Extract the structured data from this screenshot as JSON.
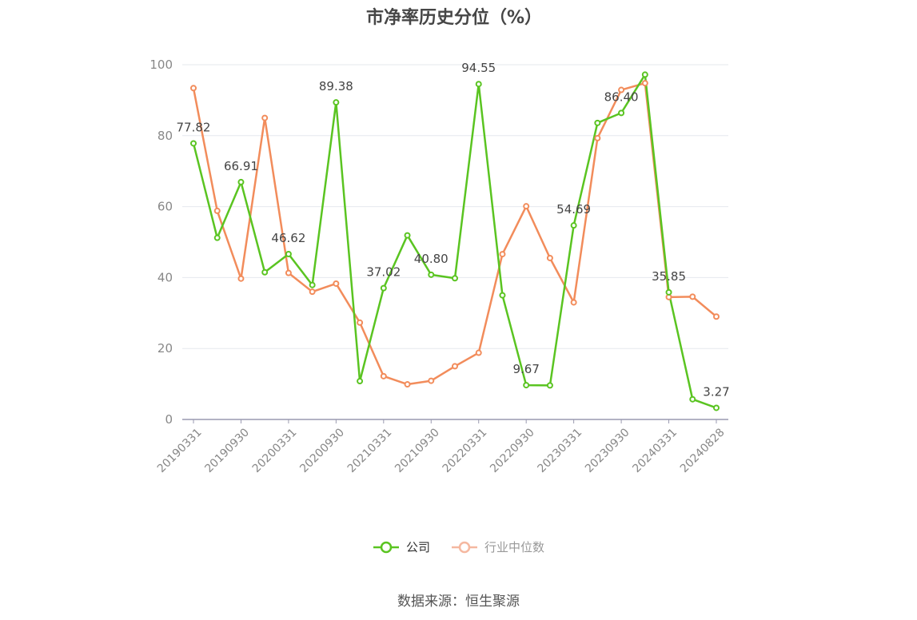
{
  "title": "市净率历史分位（%）",
  "source": "数据来源：恒生聚源",
  "legend": {
    "company": "公司",
    "industry": "行业中位数"
  },
  "colors": {
    "company": "#5ac421",
    "industry": "#f28c5b",
    "industry_legend": "#f5b8a0",
    "grid": "#e6e8ee",
    "axis": "#9a9ab0",
    "tick_text": "#888888",
    "label_text": "#444444"
  },
  "chart_data": {
    "type": "line",
    "ylim": [
      0,
      100
    ],
    "yticks": [
      0,
      20,
      40,
      60,
      80,
      100
    ],
    "grid": true,
    "legend_position": "bottom",
    "x": [
      "20190331",
      "20190630",
      "20190930",
      "20191231",
      "20200331",
      "20200630",
      "20200930",
      "20201231",
      "20210331",
      "20210630",
      "20210930",
      "20211231",
      "20220331",
      "20220630",
      "20220930",
      "20221231",
      "20230331",
      "20230630",
      "20230930",
      "20231231",
      "20240331",
      "20240630",
      "20240828"
    ],
    "x_tick_labels": [
      "20190331",
      "20190930",
      "20200331",
      "20200930",
      "20210331",
      "20210930",
      "20220331",
      "20220930",
      "20230331",
      "20230930",
      "20240331",
      "20240828"
    ],
    "series": [
      {
        "name": "公司",
        "values": [
          77.82,
          51.2,
          66.91,
          41.5,
          46.62,
          37.9,
          89.38,
          10.8,
          37.02,
          51.9,
          40.8,
          39.8,
          94.55,
          35.0,
          9.67,
          9.6,
          54.69,
          83.6,
          86.4,
          97.2,
          35.85,
          5.7,
          3.27
        ],
        "data_labels": [
          "77.82",
          "",
          "66.91",
          "",
          "46.62",
          "",
          "89.38",
          "",
          "37.02",
          "",
          "40.80",
          "",
          "94.55",
          "",
          "9.67",
          "",
          "54.69",
          "",
          "86.40",
          "",
          "35.85",
          "",
          "3.27"
        ]
      },
      {
        "name": "行业中位数",
        "values": [
          93.4,
          58.8,
          39.7,
          85.0,
          41.3,
          36.0,
          38.3,
          27.3,
          12.2,
          9.9,
          10.9,
          15.0,
          18.8,
          46.6,
          60.1,
          45.5,
          33.0,
          79.3,
          92.9,
          94.8,
          34.5,
          34.6,
          29.0
        ]
      }
    ]
  }
}
